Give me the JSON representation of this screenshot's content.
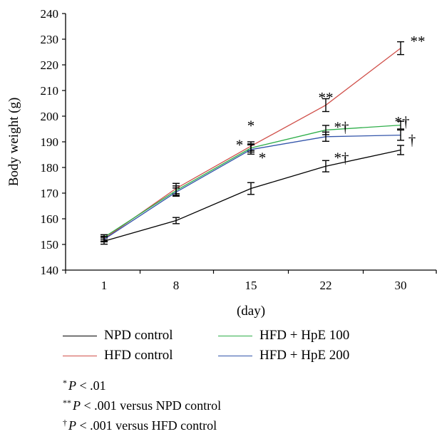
{
  "chart_data": {
    "type": "line",
    "title": "",
    "xlabel": "(day)",
    "ylabel": "Body weight (g)",
    "categories": [
      "1",
      "8",
      "15",
      "22",
      "30"
    ],
    "ylim": [
      140,
      240
    ],
    "yticks": [
      "140",
      "150",
      "160",
      "170",
      "180",
      "190",
      "200",
      "210",
      "220",
      "230",
      "240"
    ],
    "grid": false,
    "legend_position": "bottom",
    "series": [
      {
        "name": "NPD control",
        "color": "#000000",
        "values": [
          151.3,
          159.3,
          171.8,
          180.5,
          186.8
        ],
        "errors": [
          1.2,
          1.2,
          2.3,
          2.2,
          1.8
        ]
      },
      {
        "name": "HFD control",
        "color": "#d0504a",
        "values": [
          152.2,
          171.8,
          188.3,
          204.3,
          226.5
        ],
        "errors": [
          1.0,
          2.0,
          1.7,
          2.5,
          2.5
        ]
      },
      {
        "name": "HFD + HpE 100",
        "color": "#2fae4a",
        "values": [
          152.8,
          171.0,
          187.6,
          194.6,
          196.5
        ],
        "errors": [
          1.0,
          1.8,
          1.6,
          1.8,
          1.5
        ]
      },
      {
        "name": "HFD + HpE 200",
        "color": "#3355aa",
        "values": [
          152.0,
          170.4,
          187.0,
          192.0,
          192.6
        ],
        "errors": [
          1.0,
          1.6,
          1.8,
          1.8,
          2.0
        ]
      }
    ],
    "annotations": [
      {
        "text": "*",
        "x": "15",
        "y": 196.5
      },
      {
        "text": "*",
        "x": "15",
        "y": 189.0
      },
      {
        "text": "*",
        "x": "15",
        "y": 184.0
      },
      {
        "text": "**",
        "x": "22",
        "y": 207.5
      },
      {
        "text": "*†",
        "x": "22",
        "y": 196.0
      },
      {
        "text": "*†",
        "x": "22",
        "y": 184.0
      },
      {
        "text": "**",
        "x": "30",
        "y": 229.5
      },
      {
        "text": "*†",
        "x": "30",
        "y": 198.0
      },
      {
        "text": "†",
        "x": "30",
        "y": 191.0
      }
    ]
  },
  "footnotes": [
    {
      "mark": "*",
      "p": "P",
      "text": " < .01"
    },
    {
      "mark": "**",
      "p": "P",
      "text": " < .001 versus NPD control"
    },
    {
      "mark": "†",
      "p": "P",
      "text": " < .001 versus HFD control"
    }
  ]
}
